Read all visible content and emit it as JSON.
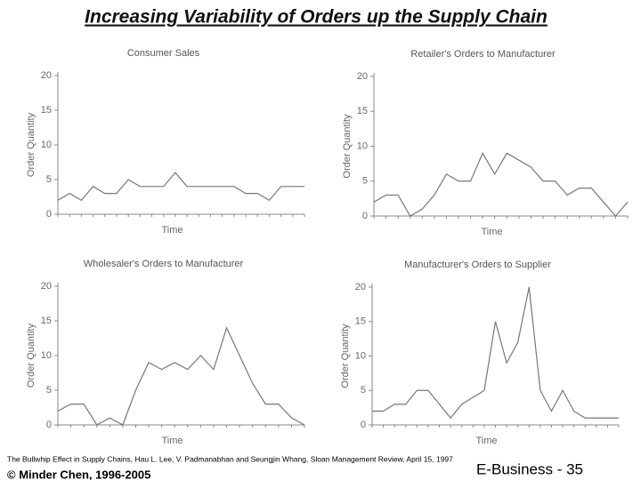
{
  "title": "Increasing Variability of Orders up the Supply Chain",
  "footer": {
    "source": "The Bullwhip Effect in Supply Chains, Hau L. Lee, V. Padmanabhan and Seungjin Whang, Sloan Management Review, April 15, 1997",
    "copyright": "© Minder Chen, 1996-2005",
    "page": "E-Business - 35"
  },
  "chart_data": [
    {
      "type": "line",
      "title": "Consumer Sales",
      "ylabel": "Order Quantity",
      "xlabel": "Time",
      "color": "#777777",
      "categories": [
        null,
        null,
        null,
        null,
        null,
        null,
        null,
        null,
        null,
        null,
        null,
        null,
        null,
        null,
        null,
        null,
        null,
        null,
        null,
        null,
        null,
        null
      ],
      "values": [
        2,
        3,
        2,
        4,
        3,
        3,
        5,
        4,
        4,
        4,
        6,
        4,
        4,
        4,
        4,
        4,
        3,
        3,
        2,
        4,
        4,
        4
      ],
      "ylim": [
        0,
        20
      ],
      "yticks": [
        0,
        5,
        10,
        15,
        20
      ]
    },
    {
      "type": "line",
      "title": "Retailer's Orders to Manufacturer",
      "ylabel": "Order Quantity",
      "xlabel": "Time",
      "color": "#777777",
      "categories": [
        null,
        null,
        null,
        null,
        null,
        null,
        null,
        null,
        null,
        null,
        null,
        null,
        null,
        null,
        null,
        null,
        null,
        null,
        null,
        null,
        null,
        null
      ],
      "values": [
        2,
        3,
        3,
        0,
        1,
        3,
        6,
        5,
        5,
        9,
        6,
        9,
        8,
        7,
        5,
        5,
        3,
        4,
        4,
        2,
        0,
        2
      ],
      "ylim": [
        0,
        20
      ],
      "yticks": [
        0,
        5,
        10,
        15,
        20
      ]
    },
    {
      "type": "line",
      "title": "Wholesaler's Orders to Manufacturer",
      "ylabel": "Order Quantity",
      "xlabel": "Time",
      "color": "#777777",
      "categories": [
        null,
        null,
        null,
        null,
        null,
        null,
        null,
        null,
        null,
        null,
        null,
        null,
        null,
        null,
        null,
        null,
        null,
        null,
        null,
        null
      ],
      "values": [
        2,
        3,
        3,
        0,
        1,
        0,
        5,
        9,
        8,
        9,
        8,
        10,
        8,
        14,
        10,
        6,
        3,
        3,
        1,
        0
      ],
      "ylim": [
        0,
        20
      ],
      "yticks": [
        0,
        5,
        10,
        15,
        20
      ]
    },
    {
      "type": "line",
      "title": "Manufacturer's Orders to Supplier",
      "ylabel": "Order Quantity",
      "xlabel": "Time",
      "color": "#777777",
      "categories": [
        null,
        null,
        null,
        null,
        null,
        null,
        null,
        null,
        null,
        null,
        null,
        null,
        null,
        null,
        null,
        null,
        null,
        null,
        null,
        null,
        null,
        null,
        null
      ],
      "values": [
        2,
        2,
        3,
        3,
        5,
        5,
        3,
        1,
        3,
        4,
        5,
        15,
        9,
        12,
        20,
        5,
        2,
        5,
        2,
        1,
        1,
        1,
        1
      ],
      "ylim": [
        0,
        20
      ],
      "yticks": [
        0,
        5,
        10,
        15,
        20
      ]
    }
  ]
}
